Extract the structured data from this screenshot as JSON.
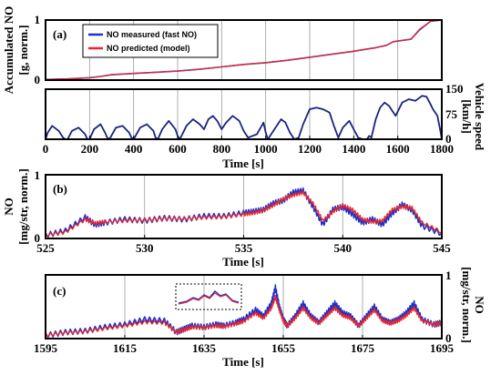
{
  "chart_data": [
    {
      "id": "a-top",
      "type": "line",
      "panel_tag": "(a)",
      "ylabel": [
        "Accumulated NO",
        "[g, norm.]"
      ],
      "xlabel": "",
      "xlim": [
        0,
        1800
      ],
      "ylim": [
        0,
        1
      ],
      "y_ticks": [
        "0",
        "1"
      ],
      "grid_x": [
        200,
        400,
        600,
        800,
        1000,
        1200,
        1400,
        1600
      ],
      "legend": {
        "placement": "top-left",
        "entries": [
          {
            "label": "NO measured (fast NO)",
            "color": "#1f2fc8"
          },
          {
            "label": "NO predicted (model)",
            "color": "#e8262b"
          }
        ]
      },
      "series": [
        {
          "name": "NO measured (fast NO)",
          "color": "#1f2fc8",
          "x": [
            0,
            100,
            200,
            250,
            300,
            400,
            500,
            600,
            700,
            800,
            900,
            1000,
            1100,
            1200,
            1300,
            1400,
            1450,
            1500,
            1550,
            1580,
            1620,
            1660,
            1700,
            1750,
            1800
          ],
          "y": [
            0.01,
            0.02,
            0.04,
            0.06,
            0.09,
            0.11,
            0.13,
            0.15,
            0.18,
            0.22,
            0.26,
            0.29,
            0.33,
            0.38,
            0.43,
            0.48,
            0.51,
            0.54,
            0.58,
            0.64,
            0.66,
            0.68,
            0.84,
            0.98,
            1.0
          ]
        },
        {
          "name": "NO predicted (model)",
          "color": "#e8262b",
          "x": [
            0,
            100,
            200,
            250,
            300,
            400,
            500,
            600,
            700,
            800,
            900,
            1000,
            1100,
            1200,
            1300,
            1400,
            1450,
            1500,
            1550,
            1580,
            1620,
            1660,
            1700,
            1750,
            1800
          ],
          "y": [
            0.01,
            0.02,
            0.04,
            0.06,
            0.09,
            0.11,
            0.13,
            0.15,
            0.18,
            0.22,
            0.26,
            0.29,
            0.33,
            0.38,
            0.43,
            0.48,
            0.51,
            0.54,
            0.58,
            0.64,
            0.66,
            0.68,
            0.85,
            0.98,
            1.0
          ]
        }
      ]
    },
    {
      "id": "a-speed",
      "type": "line",
      "ylabel_right": [
        "Vehicle speed",
        "[km/h]"
      ],
      "xlabel": "Time [s]",
      "xlim": [
        0,
        1800
      ],
      "ylim": [
        0,
        150
      ],
      "x_ticks": [
        "0",
        "200",
        "400",
        "600",
        "800",
        "1000",
        "1200",
        "1400",
        "1600",
        "1800"
      ],
      "y_ticks_right": [
        "0",
        "75",
        "150"
      ],
      "grid_x": [
        200,
        400,
        600,
        800,
        1000,
        1200,
        1400,
        1600
      ],
      "series": [
        {
          "name": "",
          "color": "#1a237e",
          "x": [
            0,
            10,
            30,
            60,
            80,
            90,
            100,
            120,
            150,
            180,
            190,
            200,
            220,
            250,
            270,
            280,
            290,
            320,
            350,
            380,
            390,
            400,
            430,
            460,
            490,
            500,
            510,
            530,
            560,
            590,
            600,
            610,
            640,
            670,
            700,
            720,
            740,
            760,
            780,
            800,
            820,
            850,
            880,
            900,
            920,
            960,
            990,
            1000,
            1010,
            1040,
            1070,
            1090,
            1110,
            1130,
            1150,
            1170,
            1200,
            1230,
            1260,
            1290,
            1310,
            1330,
            1350,
            1380,
            1400,
            1420,
            1440,
            1460,
            1470,
            1480,
            1500,
            1520,
            1540,
            1560,
            1590,
            1620,
            1650,
            1680,
            1700,
            1710,
            1730,
            1745,
            1760,
            1780,
            1795,
            1800
          ],
          "y": [
            0,
            20,
            40,
            25,
            5,
            0,
            0,
            25,
            35,
            15,
            0,
            0,
            30,
            45,
            20,
            5,
            0,
            35,
            40,
            20,
            5,
            0,
            35,
            45,
            25,
            5,
            0,
            30,
            55,
            30,
            10,
            0,
            40,
            60,
            45,
            30,
            60,
            70,
            55,
            30,
            50,
            70,
            55,
            25,
            5,
            15,
            50,
            20,
            0,
            30,
            60,
            50,
            20,
            0,
            5,
            45,
            90,
            95,
            90,
            80,
            40,
            5,
            35,
            55,
            30,
            5,
            0,
            0,
            10,
            5,
            60,
            95,
            110,
            100,
            70,
            110,
            120,
            115,
            125,
            130,
            128,
            110,
            90,
            70,
            20,
            0
          ]
        }
      ]
    },
    {
      "id": "b",
      "type": "line",
      "panel_tag": "(b)",
      "ylabel": [
        "NO",
        "[mg/str, norm.]"
      ],
      "xlabel": "Time [s]",
      "xlim": [
        525,
        545
      ],
      "ylim": [
        0,
        1
      ],
      "x_ticks": [
        "525",
        "530",
        "535",
        "540",
        "545"
      ],
      "y_ticks": [
        "0",
        "1"
      ],
      "grid_x": [
        530,
        535,
        540
      ],
      "series": [
        {
          "name": "NO measured (fast NO)",
          "color": "#1f2fc8",
          "x": [
            525,
            526,
            527,
            527.5,
            528,
            529,
            530,
            531,
            532,
            533,
            534,
            535,
            535.5,
            536,
            536.5,
            537,
            537.5,
            538,
            538.5,
            539,
            539.5,
            540,
            540.5,
            541,
            541.5,
            542,
            542.5,
            543,
            543.5,
            544,
            545
          ],
          "y": [
            0.05,
            0.12,
            0.33,
            0.22,
            0.25,
            0.3,
            0.28,
            0.32,
            0.3,
            0.35,
            0.35,
            0.4,
            0.42,
            0.45,
            0.55,
            0.6,
            0.72,
            0.75,
            0.5,
            0.22,
            0.45,
            0.5,
            0.38,
            0.25,
            0.3,
            0.22,
            0.4,
            0.53,
            0.45,
            0.2,
            0.08
          ]
        },
        {
          "name": "NO predicted (model)",
          "color": "#e8262b",
          "x": [
            525,
            526,
            527,
            527.5,
            528,
            529,
            530,
            531,
            532,
            533,
            534,
            535,
            535.5,
            536,
            536.5,
            537,
            537.5,
            538,
            538.5,
            539,
            539.5,
            540,
            540.5,
            541,
            541.5,
            542,
            542.5,
            543,
            543.5,
            544,
            545
          ],
          "y": [
            0.05,
            0.1,
            0.3,
            0.24,
            0.26,
            0.28,
            0.29,
            0.31,
            0.31,
            0.33,
            0.34,
            0.38,
            0.4,
            0.44,
            0.52,
            0.62,
            0.68,
            0.72,
            0.55,
            0.28,
            0.42,
            0.52,
            0.45,
            0.3,
            0.26,
            0.28,
            0.45,
            0.5,
            0.48,
            0.25,
            0.1
          ]
        }
      ]
    },
    {
      "id": "c",
      "type": "line",
      "panel_tag": "(c)",
      "ylabel_right": [
        "NO",
        "[mg/str, norm.]"
      ],
      "xlabel": "Time [s]",
      "xlim": [
        1595,
        1695
      ],
      "ylim": [
        0,
        1
      ],
      "x_ticks": [
        "1595",
        "1615",
        "1635",
        "1655",
        "1675",
        "1695"
      ],
      "y_ticks_right": [
        "0",
        "1"
      ],
      "grid_x": [
        1615,
        1635,
        1655,
        1675
      ],
      "series": [
        {
          "name": "NO measured (fast NO)",
          "color": "#1f2fc8",
          "x": [
            1595,
            1600,
            1605,
            1610,
            1615,
            1620,
            1625,
            1628,
            1630,
            1632,
            1635,
            1638,
            1640,
            1643,
            1645,
            1648,
            1650,
            1652,
            1653,
            1654,
            1655,
            1656,
            1658,
            1660,
            1662,
            1664,
            1666,
            1668,
            1670,
            1672,
            1674,
            1676,
            1678,
            1680,
            1682,
            1684,
            1686,
            1688,
            1690,
            1693,
            1695
          ],
          "y": [
            0.05,
            0.1,
            0.12,
            0.18,
            0.22,
            0.3,
            0.28,
            0.1,
            0.15,
            0.2,
            0.18,
            0.22,
            0.2,
            0.25,
            0.3,
            0.45,
            0.35,
            0.55,
            0.8,
            0.5,
            0.3,
            0.2,
            0.35,
            0.55,
            0.35,
            0.25,
            0.4,
            0.55,
            0.4,
            0.35,
            0.2,
            0.35,
            0.5,
            0.3,
            0.25,
            0.3,
            0.4,
            0.55,
            0.3,
            0.22,
            0.25
          ]
        },
        {
          "name": "NO predicted (model)",
          "color": "#e8262b",
          "x": [
            1595,
            1600,
            1605,
            1610,
            1615,
            1620,
            1625,
            1628,
            1630,
            1632,
            1635,
            1638,
            1640,
            1643,
            1645,
            1648,
            1650,
            1652,
            1653,
            1654,
            1655,
            1656,
            1658,
            1660,
            1662,
            1664,
            1666,
            1668,
            1670,
            1672,
            1674,
            1676,
            1678,
            1680,
            1682,
            1684,
            1686,
            1688,
            1690,
            1693,
            1695
          ],
          "y": [
            0.05,
            0.09,
            0.11,
            0.16,
            0.2,
            0.26,
            0.25,
            0.1,
            0.14,
            0.18,
            0.17,
            0.2,
            0.19,
            0.23,
            0.27,
            0.4,
            0.32,
            0.48,
            0.65,
            0.45,
            0.28,
            0.2,
            0.32,
            0.48,
            0.32,
            0.24,
            0.36,
            0.48,
            0.36,
            0.32,
            0.2,
            0.32,
            0.45,
            0.28,
            0.24,
            0.28,
            0.36,
            0.48,
            0.28,
            0.22,
            0.24
          ]
        }
      ]
    }
  ]
}
